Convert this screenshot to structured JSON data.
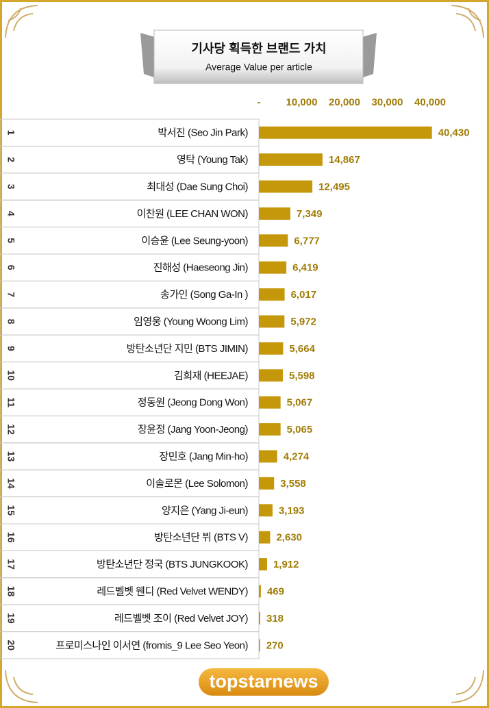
{
  "chart_data": {
    "type": "bar",
    "orientation": "horizontal",
    "title": "기사당 획득한 브랜드 가치",
    "subtitle": "Average Value per article",
    "ranks": [
      1,
      2,
      3,
      4,
      5,
      6,
      7,
      8,
      9,
      10,
      11,
      12,
      13,
      14,
      15,
      16,
      17,
      18,
      19,
      20
    ],
    "categories": [
      "박서진 (Seo Jin Park)",
      "영탁 (Young Tak)",
      "최대성 (Dae Sung Choi)",
      "이찬원 (LEE CHAN WON)",
      "이승윤 (Lee Seung-yoon)",
      "진해성 (Haeseong Jin)",
      "송가인 (Song Ga-In )",
      "임영웅 (Young Woong Lim)",
      "방탄소년단 지민 (BTS JIMIN)",
      "김희재 (HEEJAE)",
      "정동원 (Jeong Dong Won)",
      "장윤정 (Jang Yoon-Jeong)",
      "장민호 (Jang Min-ho)",
      "이솔로몬 (Lee Solomon)",
      "양지은 (Yang Ji-eun)",
      "방탄소년단 뷔 (BTS V)",
      "방탄소년단 정국 (BTS JUNGKOOK)",
      "레드벨벳 웬디 (Red Velvet WENDY)",
      "레드벨벳 조이 (Red Velvet JOY)",
      "프로미스나인 이서연 (fromis_9 Lee Seo Yeon)"
    ],
    "values": [
      40430,
      14867,
      12495,
      7349,
      6777,
      6419,
      6017,
      5972,
      5664,
      5598,
      5067,
      5065,
      4274,
      3558,
      3193,
      2630,
      1912,
      469,
      318,
      270
    ],
    "value_labels": [
      "40,430",
      "14,867",
      "12,495",
      "7,349",
      "6,777",
      "6,419",
      "6,017",
      "5,972",
      "5,664",
      "5,598",
      "5,067",
      "5,065",
      "4,274",
      "3,558",
      "3,193",
      "2,630",
      "1,912",
      "469",
      "318",
      "270"
    ],
    "color": "#c4980a",
    "xlim": [
      0,
      40000
    ],
    "xticks": [
      {
        "value": 0,
        "label": "-"
      },
      {
        "value": 10000,
        "label": "10,000"
      },
      {
        "value": 20000,
        "label": "20,000"
      },
      {
        "value": 30000,
        "label": "30,000"
      },
      {
        "value": 40000,
        "label": "40,000"
      }
    ],
    "source": "topstarnews"
  }
}
